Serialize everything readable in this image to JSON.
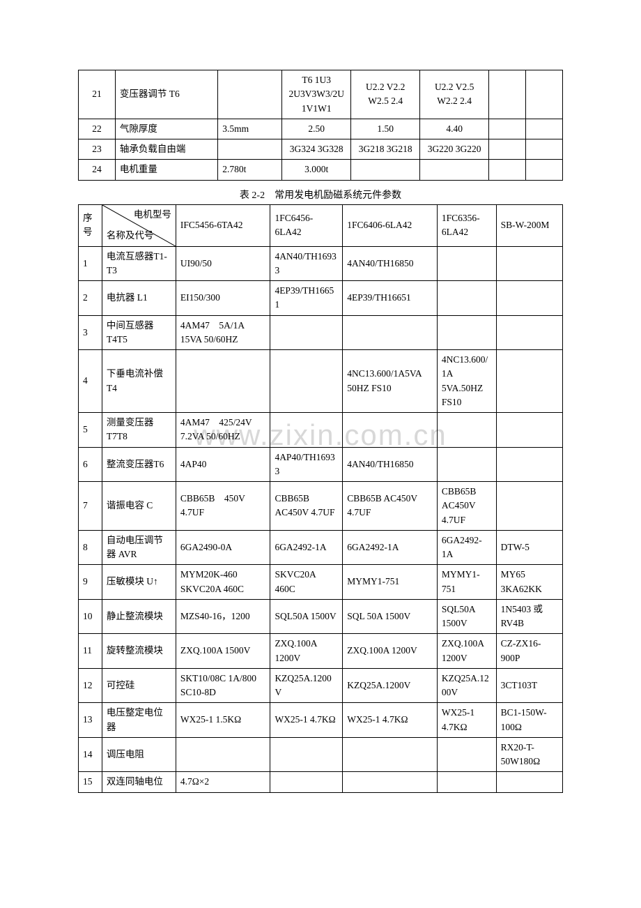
{
  "watermark": "www.zixin.com.cn",
  "table1": {
    "rows": [
      {
        "no": "21",
        "name": "变压器调节 T6",
        "c2": "",
        "c3": "T6 1U3 2U3V3W3/2U1V1W1",
        "c4": "U2.2 V2.2 W2.5 2.4",
        "c5": "U2.2 V2.5 W2.2 2.4",
        "c6": "",
        "c7": ""
      },
      {
        "no": "22",
        "name": "气隙厚度",
        "c2": "3.5mm",
        "c3": "2.50",
        "c4": "1.50",
        "c5": "4.40",
        "c6": "",
        "c7": ""
      },
      {
        "no": "23",
        "name": "轴承负载自由端",
        "c2": "",
        "c3": "3G324 3G328",
        "c4": "3G218 3G218",
        "c5": "3G220 3G220",
        "c6": "",
        "c7": ""
      },
      {
        "no": "24",
        "name": "电机重量",
        "c2": "2.780t",
        "c3": "3.000t",
        "c4": "",
        "c5": "",
        "c6": "",
        "c7": ""
      }
    ]
  },
  "caption": "表 2-2　常用发电机励磁系统元件参数",
  "table2": {
    "header": {
      "diag_top": "电机型号",
      "diag_bottom": "名称及代号",
      "seq": "序号",
      "h1": "IFC5456-6TA42",
      "h2": "1FC6456-6LA42",
      "h3": "1FC6406-6LA42",
      "h4": "1FC6356-6LA42",
      "h5": "SB-W-200M"
    },
    "rows": [
      {
        "no": "1",
        "name": "电流互感器T1-T3",
        "c1": "UI90/50",
        "c2": "4AN40/TH16933",
        "c3": "4AN40/TH16850",
        "c4": "",
        "c5": ""
      },
      {
        "no": "2",
        "name": "电抗器 L1",
        "c1": "EI150/300",
        "c2": "4EP39/TH16651",
        "c3": "4EP39/TH16651",
        "c4": "",
        "c5": ""
      },
      {
        "no": "3",
        "name": "中间互感器T4T5",
        "c1": "4AM47　5A/1A 15VA 50/60HZ",
        "c2": "",
        "c3": "",
        "c4": "",
        "c5": ""
      },
      {
        "no": "4",
        "name": "下垂电流补偿T4",
        "c1": "",
        "c2": "",
        "c3": "4NC13.600/1A5VA 50HZ FS10",
        "c4": "4NC13.600/1A 5VA.50HZ FS10",
        "c5": ""
      },
      {
        "no": "5",
        "name": "测量变压器T7T8",
        "c1": "4AM47　425/24V 7.2VA 50/60HZ",
        "c2": "",
        "c3": "",
        "c4": "",
        "c5": ""
      },
      {
        "no": "6",
        "name": "整流变压器T6",
        "c1": "4AP40",
        "c2": "4AP40/TH16933",
        "c3": "4AN40/TH16850",
        "c4": "",
        "c5": ""
      },
      {
        "no": "7",
        "name": "谐振电容 C",
        "c1": "CBB65B　450V 4.7UF",
        "c2": "CBB65B AC450V 4.7UF",
        "c3": "CBB65B AC450V 4.7UF",
        "c4": "CBB65B AC450V 4.7UF",
        "c5": ""
      },
      {
        "no": "8",
        "name": "自动电压调节器 AVR",
        "c1": "6GA2490-0A",
        "c2": "6GA2492-1A",
        "c3": "6GA2492-1A",
        "c4": "6GA2492-1A",
        "c5": "DTW-5"
      },
      {
        "no": "9",
        "name": "压敏模块 U↑",
        "c1": "MYM20K-460 SKVC20A 460C",
        "c2": "SKVC20A 460C",
        "c3": "MYMY1-751",
        "c4": "MYMY1-751",
        "c5": "MY65 3KA62KK"
      },
      {
        "no": "10",
        "name": "静止整流模块",
        "c1": "MZS40-16，1200",
        "c2": "SQL50A 1500V",
        "c3": "SQL 50A 1500V",
        "c4": "SQL50A 1500V",
        "c5": "1N5403 或 RV4B"
      },
      {
        "no": "11",
        "name": "旋转整流模块",
        "c1": "ZXQ.100A 1500V",
        "c2": "ZXQ.100A 1200V",
        "c3": "ZXQ.100A 1200V",
        "c4": "ZXQ.100A 1200V",
        "c5": "CZ-ZX16-900P"
      },
      {
        "no": "12",
        "name": "可控硅",
        "c1": "SKT10/08C 1A/800 SC10-8D",
        "c2": "KZQ25A.1200V",
        "c3": "KZQ25A.1200V",
        "c4": "KZQ25A.1200V",
        "c5": "3CT103T"
      },
      {
        "no": "13",
        "name": "电压整定电位器",
        "c1": "WX25-1 1.5KΩ",
        "c2": "WX25-1 4.7KΩ",
        "c3": "WX25-1 4.7KΩ",
        "c4": "WX25-1 4.7KΩ",
        "c5": "BC1-150W-100Ω"
      },
      {
        "no": "14",
        "name": "调压电阻",
        "c1": "",
        "c2": "",
        "c3": "",
        "c4": "",
        "c5": "RX20-T-50W180Ω"
      },
      {
        "no": "15",
        "name": "双连同轴电位",
        "c1": "4.7Ω×2",
        "c2": "",
        "c3": "",
        "c4": "",
        "c5": ""
      }
    ]
  }
}
